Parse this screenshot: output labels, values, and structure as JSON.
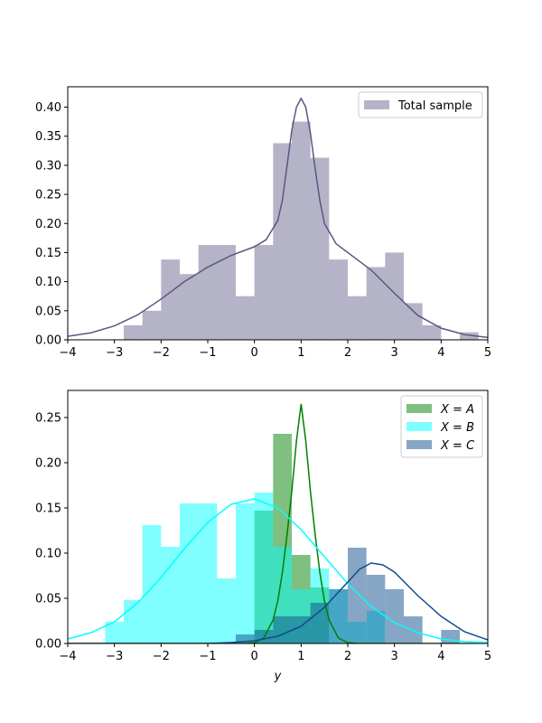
{
  "chart_data": [
    {
      "type": "bar",
      "title": "",
      "xlabel": "",
      "ylabel": "",
      "xlim": [
        -4,
        5
      ],
      "ylim": [
        0,
        0.435
      ],
      "xticks": [
        "−4",
        "−3",
        "−2",
        "−1",
        "0",
        "1",
        "2",
        "3",
        "4",
        "5"
      ],
      "yticks": [
        "0.00",
        "0.05",
        "0.10",
        "0.15",
        "0.20",
        "0.25",
        "0.30",
        "0.35",
        "0.40"
      ],
      "grid": false,
      "legend_position": "top-right",
      "series": [
        {
          "name": "Total sample",
          "color": "#5b5682",
          "histogram": [
            [
              -2.8,
              -2.4,
              0.025
            ],
            [
              -2.4,
              -2.0,
              0.05
            ],
            [
              -2.0,
              -1.6,
              0.138
            ],
            [
              -1.6,
              -1.2,
              0.113
            ],
            [
              -1.2,
              -0.8,
              0.163
            ],
            [
              -0.8,
              -0.4,
              0.163
            ],
            [
              -0.4,
              0.0,
              0.075
            ],
            [
              0.0,
              0.4,
              0.163
            ],
            [
              0.4,
              0.8,
              0.338
            ],
            [
              0.8,
              1.2,
              0.375
            ],
            [
              1.2,
              1.6,
              0.313
            ],
            [
              1.6,
              2.0,
              0.138
            ],
            [
              2.0,
              2.4,
              0.075
            ],
            [
              2.4,
              2.8,
              0.125
            ],
            [
              2.8,
              3.2,
              0.15
            ],
            [
              3.2,
              3.6,
              0.063
            ],
            [
              3.6,
              4.0,
              0.025
            ],
            [
              4.4,
              4.8,
              0.013
            ]
          ],
          "density_curve": {
            "x": [
              -4.0,
              -3.5,
              -3.0,
              -2.5,
              -2.0,
              -1.5,
              -1.0,
              -0.5,
              0.0,
              0.25,
              0.5,
              0.6,
              0.7,
              0.8,
              0.9,
              1.0,
              1.1,
              1.2,
              1.3,
              1.4,
              1.5,
              1.75,
              2.0,
              2.5,
              3.0,
              3.5,
              4.0,
              4.5,
              5.0
            ],
            "y": [
              0.006,
              0.012,
              0.024,
              0.043,
              0.07,
              0.1,
              0.125,
              0.145,
              0.16,
              0.172,
              0.205,
              0.24,
              0.3,
              0.36,
              0.4,
              0.415,
              0.4,
              0.355,
              0.295,
              0.24,
              0.2,
              0.165,
              0.15,
              0.12,
              0.08,
              0.042,
              0.02,
              0.009,
              0.004
            ]
          }
        }
      ]
    },
    {
      "type": "bar",
      "title": "",
      "xlabel": "y",
      "ylabel": "",
      "xlim": [
        -4,
        5
      ],
      "ylim": [
        0,
        0.28
      ],
      "xticks": [
        "−4",
        "−3",
        "−2",
        "−1",
        "0",
        "1",
        "2",
        "3",
        "4",
        "5"
      ],
      "yticks": [
        "0.00",
        "0.05",
        "0.10",
        "0.15",
        "0.20",
        "0.25"
      ],
      "grid": false,
      "legend_position": "top-right",
      "series": [
        {
          "name": "X = A",
          "legend_var": "X",
          "legend_val": "A",
          "color": "#008000",
          "histogram": [
            [
              0.0,
              0.4,
              0.147
            ],
            [
              0.4,
              0.8,
              0.232
            ],
            [
              0.8,
              1.2,
              0.098
            ],
            [
              1.2,
              1.6,
              0.062
            ]
          ],
          "density_curve": {
            "x": [
              -4.0,
              -0.2,
              0.0,
              0.2,
              0.4,
              0.5,
              0.6,
              0.7,
              0.8,
              0.9,
              1.0,
              1.1,
              1.2,
              1.3,
              1.4,
              1.5,
              1.6,
              1.8,
              2.0,
              2.2,
              5.0
            ],
            "y": [
              0.0,
              0.0,
              0.001,
              0.006,
              0.026,
              0.047,
              0.079,
              0.121,
              0.168,
              0.224,
              0.265,
              0.224,
              0.168,
              0.121,
              0.079,
              0.047,
              0.026,
              0.006,
              0.001,
              0.0,
              0.0
            ]
          }
        },
        {
          "name": "X = B",
          "legend_var": "X",
          "legend_val": "B",
          "color": "#00ffff",
          "histogram": [
            [
              -3.2,
              -2.8,
              0.024
            ],
            [
              -2.8,
              -2.4,
              0.048
            ],
            [
              -2.4,
              -2.0,
              0.131
            ],
            [
              -2.0,
              -1.6,
              0.107
            ],
            [
              -1.6,
              -1.2,
              0.155
            ],
            [
              -1.2,
              -0.8,
              0.155
            ],
            [
              -0.8,
              -0.4,
              0.072
            ],
            [
              -0.4,
              0.0,
              0.155
            ],
            [
              0.0,
              0.4,
              0.167
            ],
            [
              0.4,
              0.8,
              0.107
            ],
            [
              0.8,
              1.2,
              0.06
            ],
            [
              1.2,
              1.6,
              0.083
            ],
            [
              1.6,
              2.0,
              0.06
            ],
            [
              2.0,
              2.4,
              0.024
            ],
            [
              2.4,
              2.8,
              0.036
            ]
          ],
          "density_curve": {
            "x": [
              -4.0,
              -3.5,
              -3.0,
              -2.5,
              -2.0,
              -1.5,
              -1.0,
              -0.5,
              0.0,
              0.5,
              1.0,
              1.5,
              2.0,
              2.5,
              3.0,
              3.5,
              4.0,
              4.5,
              5.0
            ],
            "y": [
              0.005,
              0.012,
              0.024,
              0.045,
              0.073,
              0.105,
              0.134,
              0.154,
              0.16,
              0.15,
              0.126,
              0.096,
              0.066,
              0.041,
              0.023,
              0.012,
              0.005,
              0.002,
              0.001
            ]
          }
        },
        {
          "name": "X = C",
          "legend_var": "X",
          "legend_val": "C",
          "color": "#104e8b",
          "histogram": [
            [
              -0.4,
              0.0,
              0.01
            ],
            [
              0.0,
              0.4,
              0.015
            ],
            [
              0.4,
              0.8,
              0.03
            ],
            [
              0.8,
              1.2,
              0.03
            ],
            [
              1.2,
              1.6,
              0.045
            ],
            [
              1.6,
              2.0,
              0.06
            ],
            [
              2.0,
              2.4,
              0.106
            ],
            [
              2.4,
              2.8,
              0.076
            ],
            [
              2.8,
              3.2,
              0.06
            ],
            [
              3.2,
              3.6,
              0.03
            ],
            [
              4.0,
              4.4,
              0.015
            ]
          ],
          "density_curve": {
            "x": [
              -4.0,
              -1.0,
              -0.5,
              0.0,
              0.5,
              1.0,
              1.5,
              2.0,
              2.25,
              2.5,
              2.75,
              3.0,
              3.5,
              4.0,
              4.5,
              5.0
            ],
            "y": [
              0.0,
              0.0,
              0.001,
              0.003,
              0.008,
              0.019,
              0.04,
              0.068,
              0.082,
              0.089,
              0.087,
              0.079,
              0.053,
              0.03,
              0.013,
              0.004
            ]
          }
        }
      ]
    }
  ]
}
